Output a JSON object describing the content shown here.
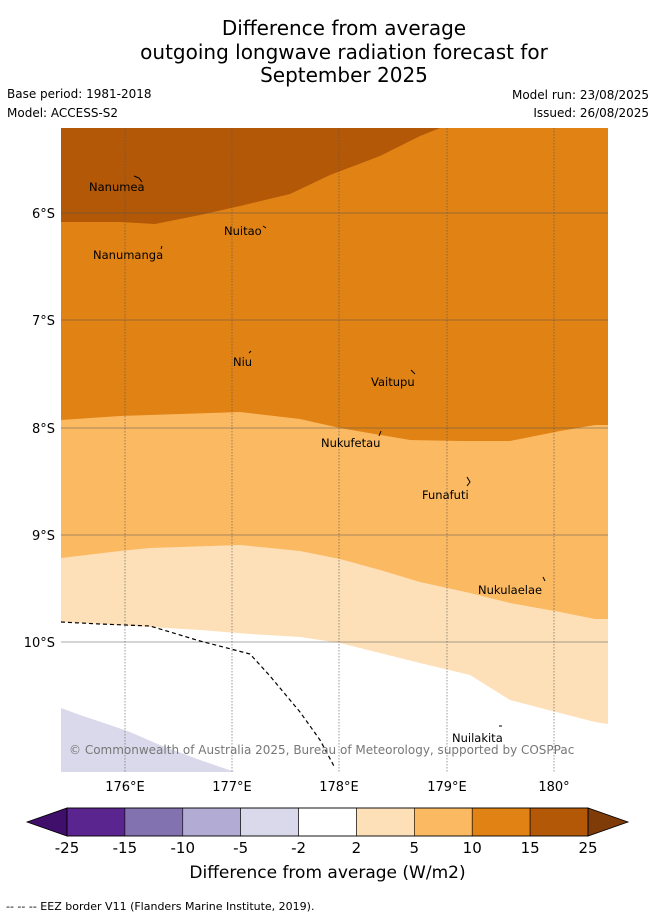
{
  "title_lines": [
    "Difference from average",
    "outgoing longwave radiation forecast for",
    "September 2025"
  ],
  "base_period": "Base period: 1981-2018",
  "model": "Model: ACCESS-S2",
  "model_run": "Model run: 23/08/2025",
  "issued": "Issued: 26/08/2025",
  "copyright": "© Commonwealth of Australia 2025, Bureau of Meteorology, supported by COSPPac",
  "lat_labels": [
    "6°S",
    "7°S",
    "8°S",
    "9°S",
    "10°S"
  ],
  "lon_labels": [
    "176°E",
    "177°E",
    "178°E",
    "179°E",
    "180°"
  ],
  "islands": [
    "Nanumea",
    "Nuitao",
    "Nanumanga",
    "Niu",
    "Vaitupu",
    "Nukufetau",
    "Funafuti",
    "Nukulaelae",
    "Nuilakita"
  ],
  "colorbar": {
    "ticks": [
      "-25",
      "-15",
      "-10",
      "-5",
      "-2",
      "2",
      "5",
      "10",
      "15",
      "25"
    ],
    "colors": [
      "#3f0f6b",
      "#5b2590",
      "#8272b0",
      "#b2acd4",
      "#d9d9eb",
      "#ffffff",
      "#fde0b7",
      "#fbb962",
      "#e08214",
      "#b35806",
      "#7f3b08"
    ],
    "title": "Difference from average (W/m2)"
  },
  "eez_note": "--  --  -- EEZ border V11 (Flanders Marine Institute, 2019)."
}
